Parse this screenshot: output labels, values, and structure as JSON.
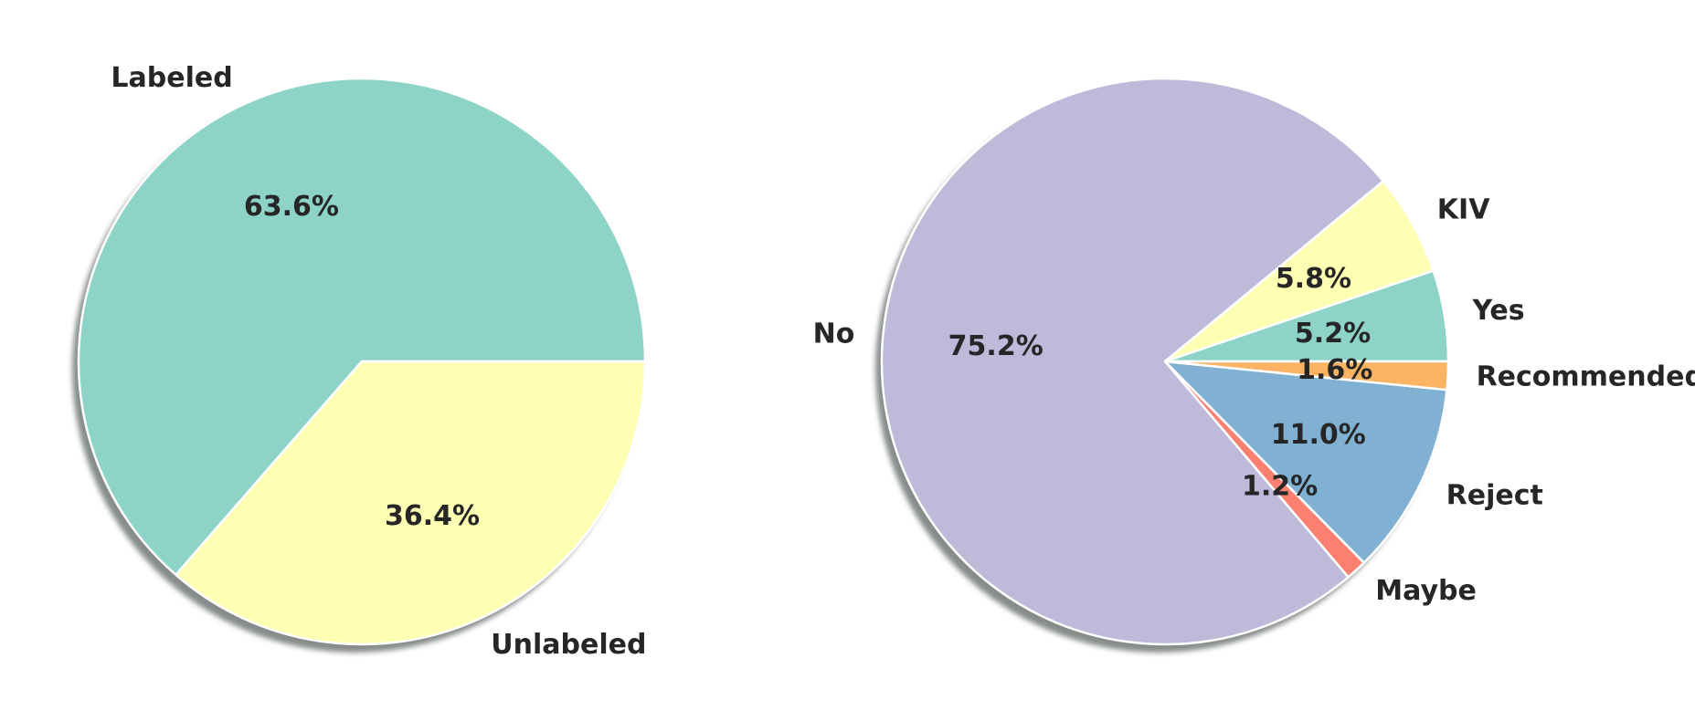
{
  "chart_data": [
    {
      "type": "pie",
      "title": "",
      "shadow": true,
      "slices": [
        {
          "label": "Labeled",
          "value": 63.6,
          "pct_label": "63.6%",
          "color": "#8dd3c7"
        },
        {
          "label": "Unlabeled",
          "value": 36.4,
          "pct_label": "36.4%",
          "color": "#ffffb3"
        }
      ]
    },
    {
      "type": "pie",
      "title": "",
      "shadow": true,
      "slices": [
        {
          "label": "Yes",
          "value": 5.2,
          "pct_label": "5.2%",
          "color": "#8dd3c7"
        },
        {
          "label": "KIV",
          "value": 5.8,
          "pct_label": "5.8%",
          "color": "#ffffb3"
        },
        {
          "label": "No",
          "value": 75.2,
          "pct_label": "75.2%",
          "color": "#bebada"
        },
        {
          "label": "Maybe",
          "value": 1.2,
          "pct_label": "1.2%",
          "color": "#fb8072"
        },
        {
          "label": "Reject",
          "value": 11.0,
          "pct_label": "11.0%",
          "color": "#80b1d3"
        },
        {
          "label": "Recommended",
          "value": 1.6,
          "pct_label": "1.6%",
          "color": "#fdb462"
        }
      ]
    }
  ]
}
